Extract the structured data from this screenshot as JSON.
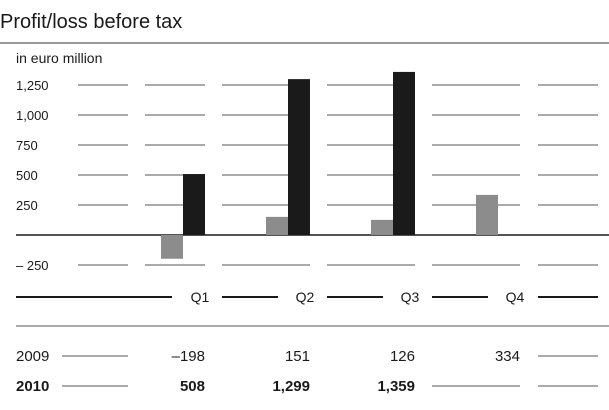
{
  "chart_data": {
    "type": "bar",
    "title": "Profit/loss before tax",
    "unit_label": "in euro million",
    "categories": [
      "Q1",
      "Q2",
      "Q3",
      "Q4"
    ],
    "y_ticks": [
      {
        "value": 1250,
        "label": "1,250"
      },
      {
        "value": 1000,
        "label": "1,000"
      },
      {
        "value": 750,
        "label": "750"
      },
      {
        "value": 500,
        "label": "500"
      },
      {
        "value": 250,
        "label": "250"
      },
      {
        "value": -250,
        "label": "– 250"
      }
    ],
    "ylim": [
      -300,
      1400
    ],
    "grid": true,
    "series": [
      {
        "name": "2009",
        "color": "#8c8c8c",
        "values": [
          -198,
          151,
          126,
          334
        ],
        "labels": [
          "–198",
          "151",
          "126",
          "334"
        ],
        "bold": false
      },
      {
        "name": "2010",
        "color": "#1a1a1a",
        "values": [
          508,
          1299,
          1359,
          null
        ],
        "labels": [
          "508",
          "1,299",
          "1,359",
          ""
        ],
        "bold": true
      }
    ]
  }
}
